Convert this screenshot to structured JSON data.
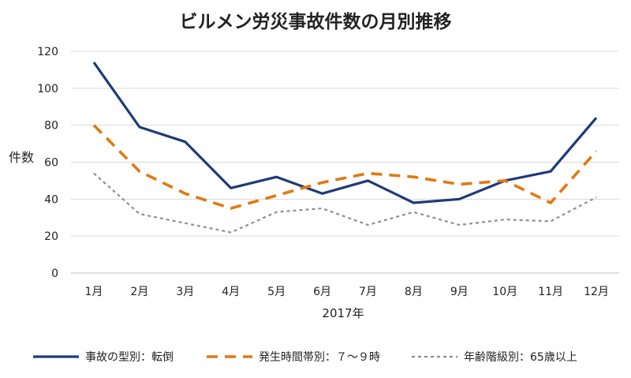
{
  "chart_data": {
    "type": "line",
    "title": "ビルメン労災事故件数の月別推移",
    "xlabel": "2017年",
    "ylabel": "件数",
    "categories": [
      "1月",
      "2月",
      "3月",
      "4月",
      "5月",
      "6月",
      "7月",
      "8月",
      "9月",
      "10月",
      "11月",
      "12月"
    ],
    "ylim": [
      0,
      120
    ],
    "yticks": [
      0,
      20,
      40,
      60,
      80,
      100,
      120
    ],
    "grid": true,
    "legend_position": "bottom",
    "series": [
      {
        "name": "事故の型別：転倒",
        "values": [
          114,
          79,
          71,
          46,
          52,
          43,
          50,
          38,
          40,
          50,
          55,
          84
        ],
        "color": "#1f3a7a",
        "style": "solid"
      },
      {
        "name": "発生時間帯別：７～９時",
        "values": [
          80,
          55,
          43,
          35,
          42,
          49,
          54,
          52,
          48,
          50,
          38,
          66
        ],
        "color": "#e07a12",
        "style": "dashed"
      },
      {
        "name": "年齢階級別：65歳以上",
        "values": [
          54,
          32,
          27,
          22,
          33,
          35,
          26,
          33,
          26,
          29,
          28,
          41
        ],
        "color": "#8f8f8f",
        "style": "dotted"
      }
    ]
  }
}
